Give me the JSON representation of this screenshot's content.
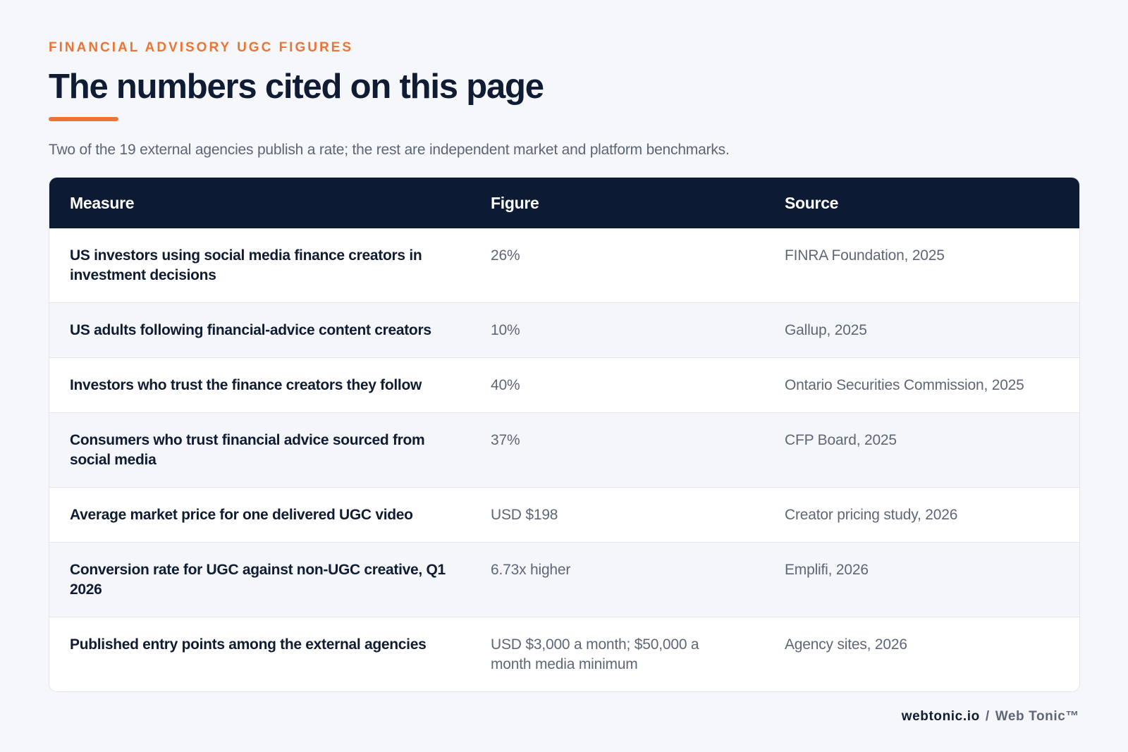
{
  "header": {
    "eyebrow": "FINANCIAL ADVISORY UGC FIGURES",
    "title": "The numbers cited on this page",
    "subtitle": "Two of the 19 external agencies publish a rate; the rest are independent market and platform benchmarks."
  },
  "table": {
    "columns": [
      "Measure",
      "Figure",
      "Source"
    ],
    "rows": [
      {
        "measure": "US investors using social media finance creators in investment decisions",
        "figure": "26%",
        "source": "FINRA Foundation, 2025"
      },
      {
        "measure": "US adults following financial-advice content creators",
        "figure": "10%",
        "source": "Gallup, 2025"
      },
      {
        "measure": "Investors who trust the finance creators they follow",
        "figure": "40%",
        "source": "Ontario Securities Commission, 2025"
      },
      {
        "measure": "Consumers who trust financial advice sourced from social media",
        "figure": "37%",
        "source": "CFP Board, 2025"
      },
      {
        "measure": "Average market price for one delivered UGC video",
        "figure": "USD $198",
        "source": "Creator pricing study, 2026"
      },
      {
        "measure": "Conversion rate for UGC against non-UGC creative, Q1 2026",
        "figure": "6.73x higher",
        "source": "Emplifi, 2026"
      },
      {
        "measure": "Published entry points among the external agencies",
        "figure": "USD $3,000 a month; $50,000 a month media minimum",
        "source": "Agency sites, 2026"
      }
    ]
  },
  "footer": {
    "site": "webtonic.io",
    "separator": "/",
    "brand": "Web Tonic™"
  },
  "colors": {
    "accent": "#ee7433",
    "header_bg": "#0c1a33",
    "page_bg": "#f5f7fa",
    "text_dark": "#0f1c33",
    "text_muted": "#5e6778"
  }
}
